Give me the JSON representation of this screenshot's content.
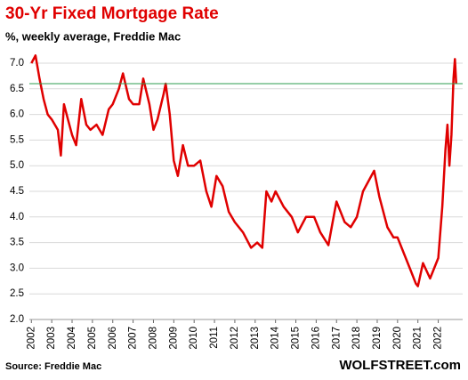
{
  "chart_data": {
    "type": "line",
    "title": "30-Yr Fixed Mortgage Rate",
    "subtitle": "%, weekly average, Freddie Mac",
    "source": "Source: Freddie Mac",
    "credit": "WOLFSTREET.com",
    "x": [
      2002.0,
      2002.2,
      2002.4,
      2002.6,
      2002.8,
      2003.0,
      2003.3,
      2003.45,
      2003.6,
      2003.8,
      2004.0,
      2004.2,
      2004.45,
      2004.7,
      2004.9,
      2005.2,
      2005.5,
      2005.8,
      2006.0,
      2006.3,
      2006.5,
      2006.8,
      2007.0,
      2007.3,
      2007.5,
      2007.8,
      2008.0,
      2008.2,
      2008.5,
      2008.6,
      2008.8,
      2009.0,
      2009.2,
      2009.45,
      2009.7,
      2010.0,
      2010.3,
      2010.6,
      2010.85,
      2011.1,
      2011.4,
      2011.7,
      2012.0,
      2012.4,
      2012.8,
      2013.1,
      2013.35,
      2013.55,
      2013.8,
      2014.0,
      2014.4,
      2014.8,
      2015.1,
      2015.5,
      2015.9,
      2016.2,
      2016.6,
      2016.9,
      2017.0,
      2017.4,
      2017.7,
      2018.0,
      2018.3,
      2018.85,
      2019.1,
      2019.5,
      2019.8,
      2020.0,
      2020.3,
      2020.6,
      2020.9,
      2021.0,
      2021.25,
      2021.6,
      2021.9,
      2022.0,
      2022.2,
      2022.35,
      2022.45,
      2022.55,
      2022.65,
      2022.75,
      2022.82,
      2022.88
    ],
    "series": [
      {
        "name": "30-Yr Fixed Mortgage Rate",
        "color": "#e00000",
        "values": [
          7.0,
          7.15,
          6.7,
          6.3,
          6.0,
          5.9,
          5.7,
          5.2,
          6.2,
          5.9,
          5.6,
          5.4,
          6.3,
          5.8,
          5.7,
          5.8,
          5.6,
          6.1,
          6.2,
          6.5,
          6.8,
          6.3,
          6.2,
          6.2,
          6.7,
          6.2,
          5.7,
          5.9,
          6.4,
          6.6,
          6.0,
          5.1,
          4.8,
          5.4,
          5.0,
          5.0,
          5.1,
          4.5,
          4.2,
          4.8,
          4.6,
          4.1,
          3.9,
          3.7,
          3.4,
          3.5,
          3.4,
          4.5,
          4.3,
          4.5,
          4.2,
          4.0,
          3.7,
          4.0,
          4.0,
          3.7,
          3.45,
          4.1,
          4.3,
          3.9,
          3.8,
          4.0,
          4.5,
          4.9,
          4.4,
          3.8,
          3.6,
          3.6,
          3.3,
          3.0,
          2.7,
          2.65,
          3.1,
          2.8,
          3.1,
          3.2,
          4.2,
          5.3,
          5.8,
          5.0,
          5.6,
          6.7,
          7.08,
          6.6
        ]
      }
    ],
    "reference_line": {
      "value": 6.6,
      "color": "#2e9e4f"
    },
    "xlim": [
      2001.9,
      2023.2
    ],
    "xticks": [
      2002,
      2003,
      2004,
      2005,
      2006,
      2007,
      2008,
      2009,
      2010,
      2011,
      2012,
      2013,
      2014,
      2015,
      2016,
      2017,
      2018,
      2019,
      2020,
      2021,
      2022
    ],
    "ylim": [
      2.0,
      7.3
    ],
    "yticks": [
      {
        "value": 2,
        "label": "2.0"
      },
      2.5,
      {
        "value": 3,
        "label": "3.0"
      },
      3.5,
      {
        "value": 4,
        "label": "4.0"
      },
      4.5,
      {
        "value": 5,
        "label": "5.0"
      },
      5.5,
      {
        "value": 6,
        "label": "6.0"
      },
      6.5,
      {
        "value": 7,
        "label": "7.0"
      }
    ],
    "grid": true
  }
}
